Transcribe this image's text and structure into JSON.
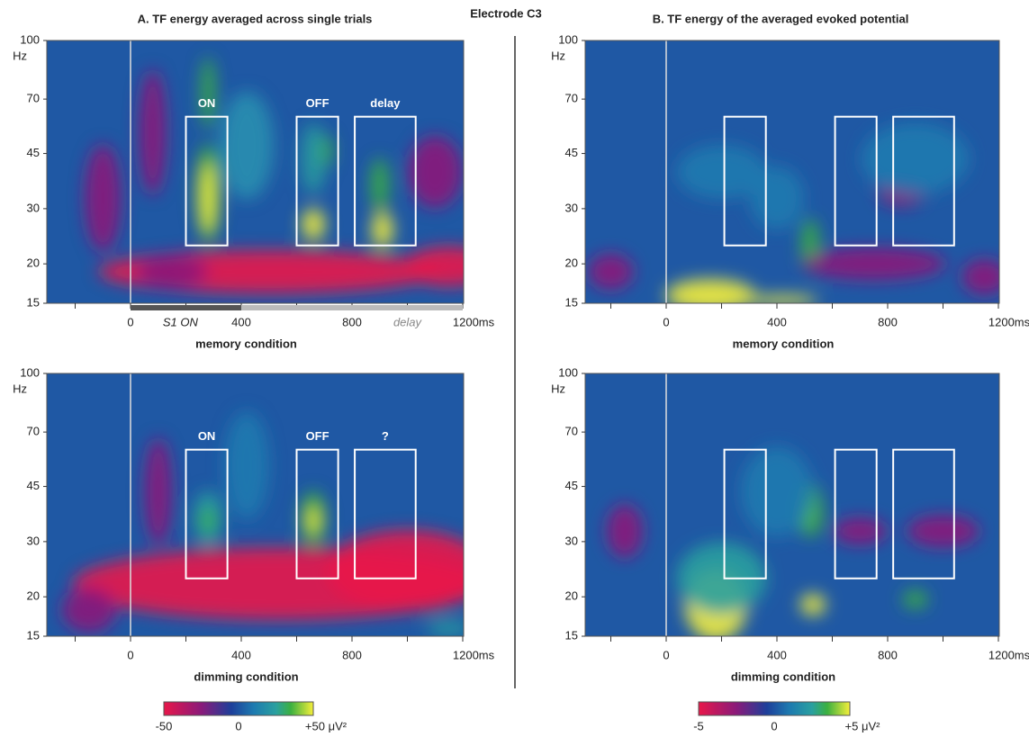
{
  "figure_title": "Electrode C3",
  "panels": [
    {
      "title": "A. TF energy averaged across single trials",
      "rows": [
        {
          "condition": "memory condition",
          "boxes": [
            "ON",
            "OFF",
            "delay"
          ],
          "timeline": [
            "S1 ON",
            "delay"
          ]
        },
        {
          "condition": "dimming condition",
          "boxes": [
            "ON",
            "OFF",
            "?"
          ]
        }
      ],
      "colorbar": [
        "-50",
        "0",
        "+50 μV²"
      ]
    },
    {
      "title": "B. TF energy of the averaged evoked potential",
      "rows": [
        {
          "condition": "memory condition"
        },
        {
          "condition": "dimming condition"
        }
      ],
      "colorbar": [
        "-5",
        "0",
        "+5 μV²"
      ]
    }
  ],
  "y_axis": {
    "unit": "Hz",
    "ticks": [
      "100",
      "70",
      "45",
      "30",
      "20",
      "15"
    ]
  },
  "x_axis": {
    "ticks": [
      "0",
      "400",
      "800",
      "1200ms"
    ]
  }
}
